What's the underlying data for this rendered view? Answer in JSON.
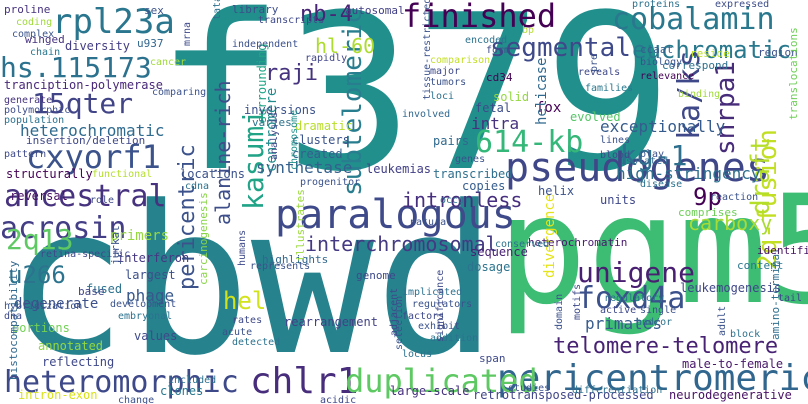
{
  "words": [
    {
      "text": "f379",
      "color": "#21908d"
    },
    {
      "text": "cbwd",
      "color": "#26838e"
    },
    {
      "text": "pgm5",
      "color": "#3dbc74"
    },
    {
      "text": "paralogous",
      "color": "#3e4a89"
    },
    {
      "text": "pseudogenes",
      "color": "#3f4788"
    },
    {
      "text": "pericentromeric",
      "color": "#31668e"
    },
    {
      "text": "heteromorphic",
      "color": "#3e4989"
    },
    {
      "text": "chlr1",
      "color": "#472d7b"
    },
    {
      "text": "duplicated",
      "color": "#5ec962"
    },
    {
      "text": "rpl23a",
      "color": "#2a768e"
    },
    {
      "text": "finished",
      "color": "#440154"
    },
    {
      "text": "cobalamin",
      "color": "#2a788e"
    },
    {
      "text": "hs.115173",
      "color": "#2c728e"
    },
    {
      "text": "cxyorf1",
      "color": "#3b528b"
    },
    {
      "text": "15qter",
      "color": "#414487"
    },
    {
      "text": "ancestral",
      "color": "#46327e"
    },
    {
      "text": "acrosin",
      "color": "#433e85"
    },
    {
      "text": "2q13",
      "color": "#5ec962"
    },
    {
      "text": "u266",
      "color": "#2c738e"
    },
    {
      "text": "segmental",
      "color": "#3e4989"
    },
    {
      "text": "euchromatic",
      "color": "#29798e"
    },
    {
      "text": "snrpa1",
      "color": "#472c7a"
    },
    {
      "text": "ka/ks",
      "color": "#3f4889"
    },
    {
      "text": "subtelomeric",
      "color": "#287d8e"
    },
    {
      "text": "kasumi",
      "color": "#20a386"
    },
    {
      "text": "614-kb",
      "color": "#35b779"
    },
    {
      "text": "kg-1",
      "color": "#2d708e"
    },
    {
      "text": "foxd4a",
      "color": "#3b518b"
    },
    {
      "text": "unigene",
      "color": "#481f71"
    },
    {
      "text": "interchromosomal",
      "color": "#443983"
    },
    {
      "text": "intronless",
      "color": "#462f7e"
    },
    {
      "text": "telomere-telomere",
      "color": "#482374"
    },
    {
      "text": "2q-fusion",
      "color": "#c2df23"
    },
    {
      "text": "draft",
      "color": "#b5de2b"
    },
    {
      "text": "9p",
      "color": "#440154"
    },
    {
      "text": "carboxy",
      "color": "#a8db34"
    },
    {
      "text": "nb-4",
      "color": "#482576"
    },
    {
      "text": "hl-60",
      "color": "#addc30"
    },
    {
      "text": "raji",
      "color": "#46337f"
    },
    {
      "text": "hel",
      "color": "#d2e21b"
    },
    {
      "text": "pericentric",
      "color": "#3b528b"
    },
    {
      "text": "alanine-rich",
      "color": "#3d4e8a"
    },
    {
      "text": "heterochromatic",
      "color": "#2f6b8e"
    },
    {
      "text": "exceptionally",
      "color": "#365c8d"
    },
    {
      "text": "high-stringency",
      "color": "#2d708e"
    },
    {
      "text": "phage",
      "color": "#38588c"
    },
    {
      "text": "primates",
      "color": "#375b8d"
    },
    {
      "text": "synthetase",
      "color": "#34608d"
    },
    {
      "text": "intra",
      "color": "#46327e"
    },
    {
      "text": "centromere",
      "color": "#228c8d"
    },
    {
      "text": "fox",
      "color": "#440154"
    },
    {
      "text": "helicase",
      "color": "#31688e"
    },
    {
      "text": "locations",
      "color": "#3b528b"
    },
    {
      "text": "leukemias",
      "color": "#424086"
    },
    {
      "text": "annotated",
      "color": "#93d741"
    },
    {
      "text": "degenerate",
      "color": "#3c508b"
    },
    {
      "text": "reversal",
      "color": "#471063"
    },
    {
      "text": "interferon",
      "color": "#453882"
    },
    {
      "text": "largest",
      "color": "#3c4f8a"
    },
    {
      "text": "reflecting",
      "color": "#3f4889"
    },
    {
      "text": "portions",
      "color": "#73d056"
    },
    {
      "text": "primers",
      "color": "#95d840"
    },
    {
      "text": "divergence",
      "color": "#e5e419"
    },
    {
      "text": "retrotransposed-processed",
      "color": "#404588"
    },
    {
      "text": "neurodegenerative",
      "color": "#471063"
    },
    {
      "text": "amino-terminal",
      "color": "#2e6e8e"
    },
    {
      "text": "male-to-female",
      "color": "#481769"
    },
    {
      "text": "large-scale",
      "color": "#46307e"
    },
    {
      "text": "clones",
      "color": "#2a788e"
    },
    {
      "text": "intron-exon",
      "color": "#d8e219"
    },
    {
      "text": "rearrangement",
      "color": "#424186"
    },
    {
      "text": "span",
      "color": "#3e4a89"
    },
    {
      "text": "sequence",
      "color": "#482173"
    },
    {
      "text": "leukemogenesis",
      "color": "#3f4788"
    },
    {
      "text": "heterochromatin",
      "color": "#481a6c"
    },
    {
      "text": "helix",
      "color": "#3b528b"
    },
    {
      "text": "copies",
      "color": "#365d8d"
    },
    {
      "text": "transcribed",
      "color": "#2e6f8e"
    },
    {
      "text": "units",
      "color": "#3f4889"
    },
    {
      "text": "solid",
      "color": "#95d840"
    },
    {
      "text": "fetal",
      "color": "#3d4d8a"
    },
    {
      "text": "pairs",
      "color": "#30698e"
    },
    {
      "text": "evolved",
      "color": "#56c667"
    },
    {
      "text": "correspond",
      "color": "#2d718e"
    },
    {
      "text": "content",
      "color": "#2a768e"
    },
    {
      "text": "comprises",
      "color": "#6ece58"
    },
    {
      "text": "identified",
      "color": "#471365"
    },
    {
      "text": "dosage",
      "color": "#2c738e"
    },
    {
      "text": "genome",
      "color": "#3e4989"
    },
    {
      "text": "highlights",
      "color": "#31678e"
    },
    {
      "text": "illustrates",
      "color": "#9bd93c"
    },
    {
      "text": "clusters",
      "color": "#3a538b"
    },
    {
      "text": "created",
      "color": "#355e8d"
    },
    {
      "text": "dramatic",
      "color": "#b8de29"
    },
    {
      "text": "surrounding",
      "color": "#20a486"
    },
    {
      "text": "inversions",
      "color": "#3b528b"
    },
    {
      "text": "varies",
      "color": "#2c728e"
    },
    {
      "text": "diversity",
      "color": "#433d84"
    },
    {
      "text": "winged",
      "color": "#46337f"
    },
    {
      "text": "u937",
      "color": "#31668e"
    },
    {
      "text": "tranciption-polymerase",
      "color": "#482878"
    },
    {
      "text": "proline",
      "color": "#46327e"
    },
    {
      "text": "insertion/deletion",
      "color": "#3f4889"
    },
    {
      "text": "structurally",
      "color": "#440154"
    },
    {
      "text": "carcinogenesis",
      "color": "#89d548"
    },
    {
      "text": "histocompatibility",
      "color": "#31688e"
    },
    {
      "text": "fused",
      "color": "#2c728e"
    },
    {
      "text": "jurkat",
      "color": "#3a538b"
    },
    {
      "text": "base",
      "color": "#404688"
    },
    {
      "text": "values",
      "color": "#3e4989"
    },
    {
      "text": "chromosome",
      "color": "#21918c"
    },
    {
      "text": "cd34",
      "color": "#440154"
    },
    {
      "text": "region",
      "color": "#3b528b"
    },
    {
      "text": "translocations",
      "color": "#6ece58"
    },
    {
      "text": "reside",
      "color": "#bddf26"
    },
    {
      "text": "ccaat",
      "color": "#34608d"
    },
    {
      "text": "library",
      "color": "#3d4e8a"
    },
    {
      "text": "autosomal",
      "color": "#424086"
    },
    {
      "text": "sex",
      "color": "#3b528b"
    },
    {
      "text": "tata",
      "color": "#2d708e"
    },
    {
      "text": "transcripts",
      "color": "#3e4989"
    },
    {
      "text": "proteins",
      "color": "#2c728e"
    },
    {
      "text": "expressed",
      "color": "#3d4d8a"
    },
    {
      "text": "coding",
      "color": "#a0da39"
    },
    {
      "text": "complex",
      "color": "#3a538b"
    },
    {
      "text": "chain",
      "color": "#2a778e"
    },
    {
      "text": "mrna",
      "color": "#3e4989"
    },
    {
      "text": "rapidly",
      "color": "#404588"
    },
    {
      "text": "independent",
      "color": "#3b518b"
    },
    {
      "text": "encoded",
      "color": "#2c728e"
    },
    {
      "text": "form",
      "color": "#3e4989"
    },
    {
      "text": "bp",
      "color": "#b5de2b"
    },
    {
      "text": "genes",
      "color": "#3b528b"
    },
    {
      "text": "cancer",
      "color": "#a0da39"
    },
    {
      "text": "generate",
      "color": "#46337f"
    },
    {
      "text": "polymorphic",
      "color": "#3d4d8a"
    },
    {
      "text": "population",
      "color": "#2c728e"
    },
    {
      "text": "comparing",
      "color": "#3b528b"
    },
    {
      "text": "pattern",
      "color": "#3e4989"
    },
    {
      "text": "involved",
      "color": "#31688e"
    },
    {
      "text": "tissue-restricted",
      "color": "#3b528b"
    },
    {
      "text": "major",
      "color": "#3e4989"
    },
    {
      "text": "comparison",
      "color": "#c2df23"
    },
    {
      "text": "tumors",
      "color": "#3b528b"
    },
    {
      "text": "loci",
      "color": "#2c728e"
    },
    {
      "text": "reveals",
      "color": "#3e4989"
    },
    {
      "text": "families",
      "color": "#2a788e"
    },
    {
      "text": "biology",
      "color": "#3b528b"
    },
    {
      "text": "relevance",
      "color": "#440154"
    },
    {
      "text": "binding",
      "color": "#a0da39"
    },
    {
      "text": "lines",
      "color": "#3b528b"
    },
    {
      "text": "blood",
      "color": "#3e4989"
    },
    {
      "text": "isolated",
      "color": "#31688e"
    },
    {
      "text": "play",
      "color": "#3b528b"
    },
    {
      "text": "disease",
      "color": "#2c728e"
    },
    {
      "text": "reaction",
      "color": "#3b528b"
    },
    {
      "text": "functional",
      "color": "#b5de2b"
    },
    {
      "text": "role",
      "color": "#3e4989"
    },
    {
      "text": "cdna",
      "color": "#2c728e"
    },
    {
      "text": "analysis",
      "color": "#3e4989"
    },
    {
      "text": "progenitor",
      "color": "#3b528b"
    },
    {
      "text": "occur",
      "color": "#2c728e"
    },
    {
      "text": "natural",
      "color": "#3b528b"
    },
    {
      "text": "conserved",
      "color": "#2c728e"
    },
    {
      "text": "retina-specific",
      "color": "#3e4989"
    },
    {
      "text": "hybridization",
      "color": "#3b528b"
    },
    {
      "text": "dna",
      "color": "#3e4989"
    },
    {
      "text": "development",
      "color": "#3b528b"
    },
    {
      "text": "embryonal",
      "color": "#2c728e"
    },
    {
      "text": "rates",
      "color": "#3e4989"
    },
    {
      "text": "acute",
      "color": "#3b528b"
    },
    {
      "text": "detected",
      "color": "#2c728e"
    },
    {
      "text": "represents",
      "color": "#3b528b"
    },
    {
      "text": "humans",
      "color": "#3e4989"
    },
    {
      "text": "implicated",
      "color": "#2c728e"
    },
    {
      "text": "regulators",
      "color": "#3b528b"
    },
    {
      "text": "factors",
      "color": "#3e4989"
    },
    {
      "text": "exhibit",
      "color": "#3b528b"
    },
    {
      "text": "addition",
      "color": "#2c728e"
    },
    {
      "text": "adjacent",
      "color": "#3e4989"
    },
    {
      "text": "selection",
      "color": "#3b528b"
    },
    {
      "text": "locus",
      "color": "#2c728e"
    },
    {
      "text": "significance",
      "color": "#3e4989"
    },
    {
      "text": "studies",
      "color": "#3b528b"
    },
    {
      "text": "differentiation",
      "color": "#2c728e"
    },
    {
      "text": "acidic",
      "color": "#3e4989"
    },
    {
      "text": "change",
      "color": "#3b528b"
    },
    {
      "text": "included",
      "color": "#2c728e"
    },
    {
      "text": "domain",
      "color": "#3b528b"
    },
    {
      "text": "motifs",
      "color": "#3e4989"
    },
    {
      "text": "and/or",
      "color": "#2c728e"
    },
    {
      "text": "single",
      "color": "#3b528b"
    },
    {
      "text": "regulatory",
      "color": "#2c728e"
    },
    {
      "text": "active",
      "color": "#3e4989"
    },
    {
      "text": "adult",
      "color": "#3b528b"
    },
    {
      "text": "block",
      "color": "#2c728e"
    },
    {
      "text": "tail",
      "color": "#3e4989"
    },
    {
      "text": "pre",
      "color": "#3b528b"
    }
  ]
}
